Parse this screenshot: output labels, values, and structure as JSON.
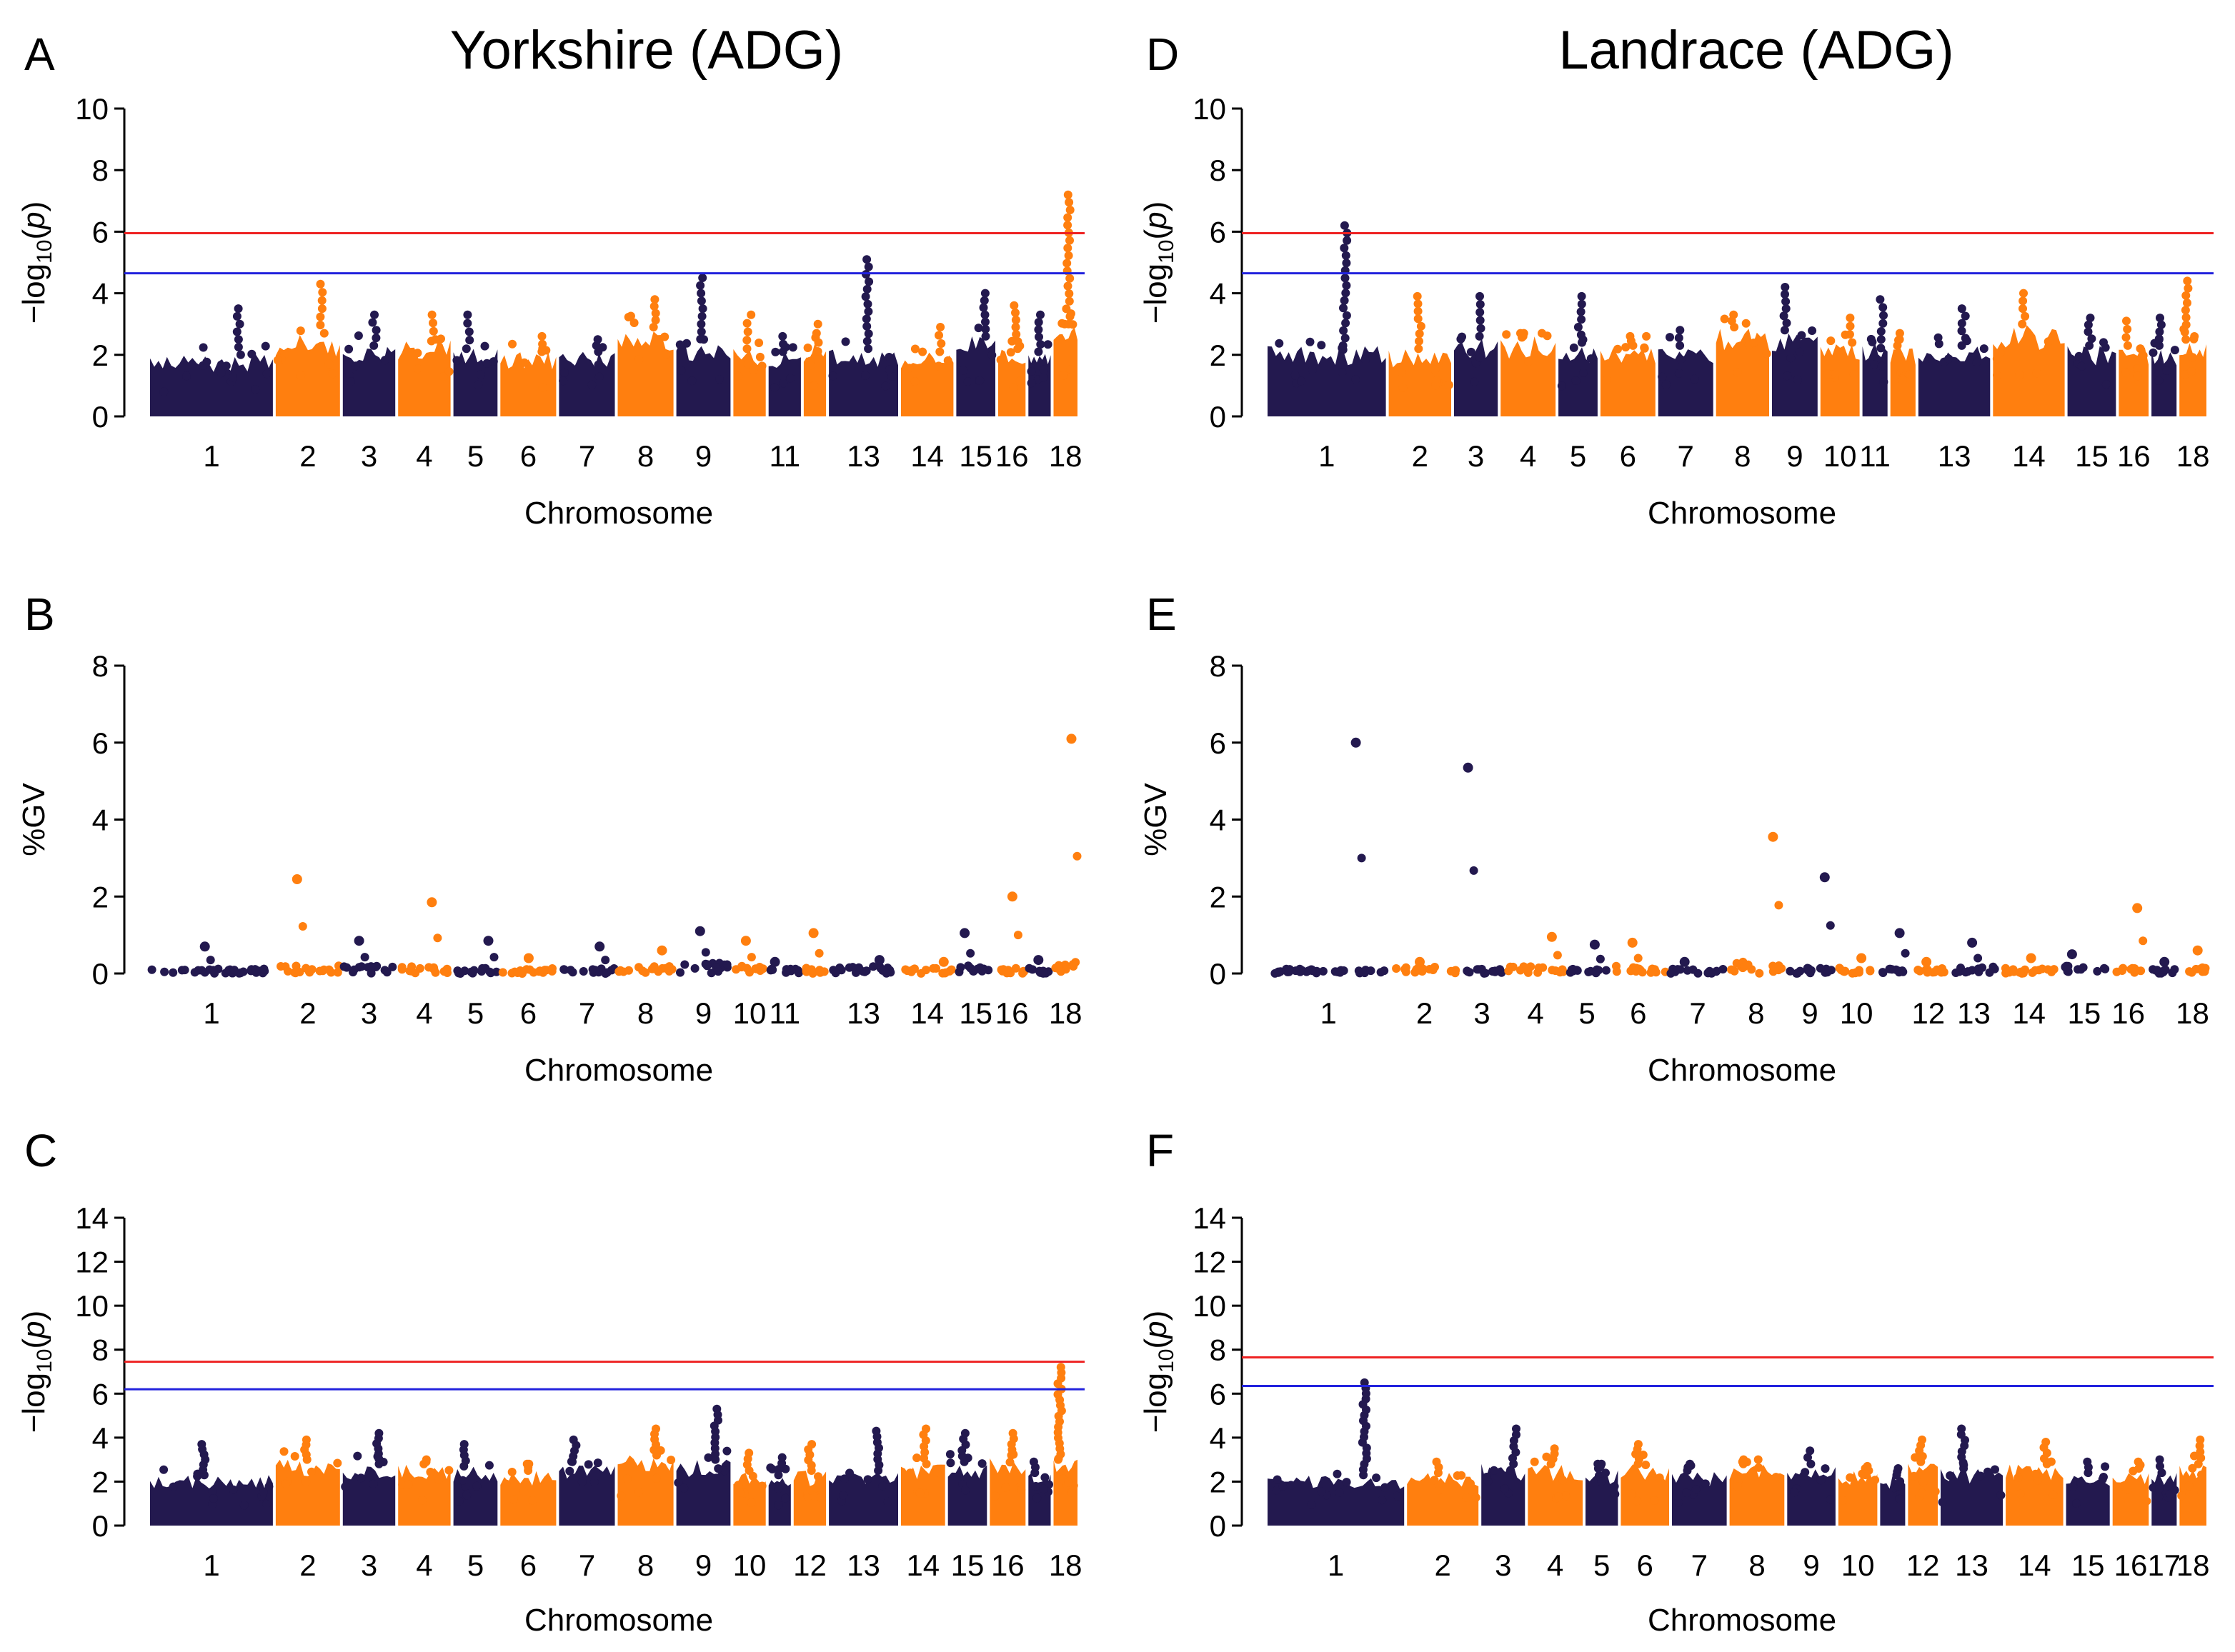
{
  "colors": {
    "dark": "#23194f",
    "orange": "#ff7f0f",
    "red": "#ee2222",
    "blue": "#2222dd",
    "axis": "#000000"
  },
  "columns": [
    {
      "title": "Yorkshire (ADG)"
    },
    {
      "title": "Landrace (ADG)"
    }
  ],
  "chart_data": [
    {
      "id": "A",
      "type": "scatter",
      "subtype": "manhattan",
      "breed": "Yorkshire",
      "trait": "ADG",
      "ylabel": {
        "prefix": "−log",
        "sub": "10",
        "suffix": "(",
        "ital": "p",
        "close": ")"
      },
      "xlabel": "Chromosome",
      "ylim": [
        0,
        10
      ],
      "yticks": [
        0,
        2,
        4,
        6,
        8,
        10
      ],
      "thresholds": [
        {
          "color": "red",
          "value": 5.95
        },
        {
          "color": "blue",
          "value": 4.65
        }
      ],
      "chromosomes": [
        {
          "label": "1",
          "len": 0.15,
          "base": 2.0,
          "peak": 3.5
        },
        {
          "label": "2",
          "len": 0.08,
          "base": 2.7,
          "peak": 4.3
        },
        {
          "label": "3",
          "len": 0.066,
          "base": 2.3,
          "peak": 3.3
        },
        {
          "label": "4",
          "len": 0.066,
          "base": 2.5,
          "peak": 3.3
        },
        {
          "label": "5",
          "len": 0.056,
          "base": 2.2,
          "peak": 3.3
        },
        {
          "label": "6",
          "len": 0.07,
          "base": 2.1,
          "peak": 2.6
        },
        {
          "label": "7",
          "len": 0.07,
          "base": 2.1,
          "peak": 2.5
        },
        {
          "label": "8",
          "len": 0.07,
          "base": 2.9,
          "peak": 3.8
        },
        {
          "label": "9",
          "len": 0.068,
          "base": 2.5,
          "peak": 4.5
        },
        {
          "label": "",
          "len": 0.042,
          "base": 2.2,
          "peak": 3.3
        },
        {
          "label": "11",
          "len": 0.042,
          "base": 2.1,
          "peak": 2.6
        },
        {
          "label": "",
          "len": 0.03,
          "base": 2.4,
          "peak": 3.0
        },
        {
          "label": "13",
          "len": 0.086,
          "base": 2.2,
          "peak": 5.1
        },
        {
          "label": "14",
          "len": 0.066,
          "base": 2.1,
          "peak": 2.9
        },
        {
          "label": "15",
          "len": 0.05,
          "base": 2.6,
          "peak": 4.0
        },
        {
          "label": "16",
          "len": 0.036,
          "base": 2.2,
          "peak": 3.6
        },
        {
          "label": "",
          "len": 0.03,
          "base": 2.1,
          "peak": 3.3
        },
        {
          "label": "18",
          "len": 0.032,
          "base": 3.0,
          "peak": 7.2
        }
      ]
    },
    {
      "id": "B",
      "type": "scatter",
      "subtype": "manhattan",
      "breed": "Yorkshire",
      "trait": "ADG",
      "ylabel": {
        "prefix": "%GV"
      },
      "xlabel": "Chromosome",
      "ylim": [
        0,
        8
      ],
      "yticks": [
        0,
        2,
        4,
        6,
        8
      ],
      "thresholds": [],
      "chromosomes": [
        {
          "label": "1",
          "len": 0.15,
          "base": 0.12,
          "peak": 0.7
        },
        {
          "label": "2",
          "len": 0.08,
          "base": 0.2,
          "peak": 2.45
        },
        {
          "label": "3",
          "len": 0.066,
          "base": 0.2,
          "peak": 0.85
        },
        {
          "label": "4",
          "len": 0.066,
          "base": 0.2,
          "peak": 1.85
        },
        {
          "label": "5",
          "len": 0.056,
          "base": 0.15,
          "peak": 0.85
        },
        {
          "label": "6",
          "len": 0.07,
          "base": 0.15,
          "peak": 0.4
        },
        {
          "label": "7",
          "len": 0.07,
          "base": 0.15,
          "peak": 0.7
        },
        {
          "label": "8",
          "len": 0.07,
          "base": 0.2,
          "peak": 0.6
        },
        {
          "label": "9",
          "len": 0.068,
          "base": 0.3,
          "peak": 1.1
        },
        {
          "label": "10",
          "len": 0.042,
          "base": 0.2,
          "peak": 0.85
        },
        {
          "label": "11",
          "len": 0.042,
          "base": 0.12,
          "peak": 0.3
        },
        {
          "label": "",
          "len": 0.03,
          "base": 0.15,
          "peak": 1.05
        },
        {
          "label": "13",
          "len": 0.086,
          "base": 0.2,
          "peak": 0.35
        },
        {
          "label": "14",
          "len": 0.066,
          "base": 0.15,
          "peak": 0.3
        },
        {
          "label": "15",
          "len": 0.05,
          "base": 0.2,
          "peak": 1.05
        },
        {
          "label": "16",
          "len": 0.036,
          "base": 0.15,
          "peak": 2.0
        },
        {
          "label": "",
          "len": 0.03,
          "base": 0.15,
          "peak": 0.35
        },
        {
          "label": "18",
          "len": 0.032,
          "base": 0.3,
          "peak": 6.1
        }
      ]
    },
    {
      "id": "C",
      "type": "scatter",
      "subtype": "manhattan",
      "breed": "Yorkshire",
      "trait": "ADG",
      "ylabel": {
        "prefix": "−log",
        "sub": "10",
        "suffix": "(",
        "ital": "p",
        "close": ")"
      },
      "xlabel": "Chromosome",
      "ylim": [
        0,
        14
      ],
      "yticks": [
        0,
        2,
        4,
        6,
        8,
        10,
        12,
        14
      ],
      "thresholds": [
        {
          "color": "red",
          "value": 7.45
        },
        {
          "color": "blue",
          "value": 6.2
        }
      ],
      "chromosomes": [
        {
          "label": "1",
          "len": 0.15,
          "base": 2.3,
          "peak": 3.7
        },
        {
          "label": "2",
          "len": 0.08,
          "base": 3.0,
          "peak": 3.9
        },
        {
          "label": "3",
          "len": 0.066,
          "base": 2.8,
          "peak": 4.2
        },
        {
          "label": "4",
          "len": 0.066,
          "base": 2.8,
          "peak": 3.0
        },
        {
          "label": "5",
          "len": 0.056,
          "base": 2.7,
          "peak": 3.7
        },
        {
          "label": "6",
          "len": 0.07,
          "base": 2.5,
          "peak": 2.8
        },
        {
          "label": "7",
          "len": 0.07,
          "base": 2.9,
          "peak": 3.9
        },
        {
          "label": "8",
          "len": 0.07,
          "base": 3.2,
          "peak": 4.4
        },
        {
          "label": "9",
          "len": 0.068,
          "base": 3.0,
          "peak": 5.3
        },
        {
          "label": "10",
          "len": 0.042,
          "base": 2.5,
          "peak": 3.3
        },
        {
          "label": "",
          "len": 0.03,
          "base": 2.3,
          "peak": 3.1
        },
        {
          "label": "12",
          "len": 0.042,
          "base": 2.5,
          "peak": 3.7
        },
        {
          "label": "13",
          "len": 0.086,
          "base": 2.5,
          "peak": 4.3
        },
        {
          "label": "14",
          "len": 0.056,
          "base": 2.8,
          "peak": 4.4
        },
        {
          "label": "15",
          "len": 0.05,
          "base": 2.9,
          "peak": 4.2
        },
        {
          "label": "16",
          "len": 0.046,
          "base": 3.2,
          "peak": 4.2
        },
        {
          "label": "",
          "len": 0.03,
          "base": 2.4,
          "peak": 2.9
        },
        {
          "label": "18",
          "len": 0.032,
          "base": 3.0,
          "peak": 7.2
        }
      ]
    },
    {
      "id": "D",
      "type": "scatter",
      "subtype": "manhattan",
      "breed": "Landrace",
      "trait": "ADG",
      "ylabel": {
        "prefix": "−log",
        "sub": "10",
        "suffix": "(",
        "ital": "p",
        "close": ")"
      },
      "xlabel": "Chromosome",
      "ylim": [
        0,
        10
      ],
      "yticks": [
        0,
        2,
        4,
        6,
        8,
        10
      ],
      "thresholds": [
        {
          "color": "red",
          "value": 5.95
        },
        {
          "color": "blue",
          "value": 4.65
        }
      ],
      "chromosomes": [
        {
          "label": "1",
          "len": 0.13,
          "base": 2.3,
          "peak": 6.2
        },
        {
          "label": "2",
          "len": 0.07,
          "base": 2.2,
          "peak": 3.9
        },
        {
          "label": "3",
          "len": 0.05,
          "base": 2.6,
          "peak": 3.9
        },
        {
          "label": "4",
          "len": 0.062,
          "base": 2.6,
          "peak": 2.7
        },
        {
          "label": "5",
          "len": 0.045,
          "base": 2.4,
          "peak": 3.9
        },
        {
          "label": "6",
          "len": 0.062,
          "base": 2.3,
          "peak": 2.6
        },
        {
          "label": "7",
          "len": 0.062,
          "base": 2.3,
          "peak": 2.8
        },
        {
          "label": "8",
          "len": 0.06,
          "base": 2.9,
          "peak": 3.3
        },
        {
          "label": "9",
          "len": 0.052,
          "base": 2.8,
          "peak": 4.2
        },
        {
          "label": "10",
          "len": 0.045,
          "base": 2.4,
          "peak": 3.2
        },
        {
          "label": "11",
          "len": 0.03,
          "base": 2.5,
          "peak": 3.8
        },
        {
          "label": "",
          "len": 0.03,
          "base": 2.3,
          "peak": 2.7
        },
        {
          "label": "13",
          "len": 0.08,
          "base": 2.3,
          "peak": 3.5
        },
        {
          "label": "14",
          "len": 0.08,
          "base": 3.0,
          "peak": 4.0
        },
        {
          "label": "15",
          "len": 0.055,
          "base": 2.3,
          "peak": 3.2
        },
        {
          "label": "16",
          "len": 0.035,
          "base": 2.3,
          "peak": 3.1
        },
        {
          "label": "",
          "len": 0.03,
          "base": 2.3,
          "peak": 3.2
        },
        {
          "label": "18",
          "len": 0.032,
          "base": 2.5,
          "peak": 4.4
        }
      ]
    },
    {
      "id": "E",
      "type": "scatter",
      "subtype": "manhattan",
      "breed": "Landrace",
      "trait": "ADG",
      "ylabel": {
        "prefix": "%GV"
      },
      "xlabel": "Chromosome",
      "ylim": [
        0,
        8
      ],
      "yticks": [
        0,
        2,
        4,
        6,
        8
      ],
      "thresholds": [],
      "chromosomes": [
        {
          "label": "1",
          "len": 0.13,
          "base": 0.12,
          "peak": 6.0
        },
        {
          "label": "2",
          "len": 0.07,
          "base": 0.18,
          "peak": 0.3
        },
        {
          "label": "3",
          "len": 0.05,
          "base": 0.15,
          "peak": 5.35
        },
        {
          "label": "4",
          "len": 0.062,
          "base": 0.2,
          "peak": 0.95
        },
        {
          "label": "5",
          "len": 0.045,
          "base": 0.12,
          "peak": 0.75
        },
        {
          "label": "6",
          "len": 0.062,
          "base": 0.2,
          "peak": 0.8
        },
        {
          "label": "7",
          "len": 0.062,
          "base": 0.12,
          "peak": 0.3
        },
        {
          "label": "8",
          "len": 0.06,
          "base": 0.3,
          "peak": 3.55
        },
        {
          "label": "9",
          "len": 0.052,
          "base": 0.15,
          "peak": 2.5
        },
        {
          "label": "10",
          "len": 0.045,
          "base": 0.15,
          "peak": 0.4
        },
        {
          "label": "",
          "len": 0.03,
          "base": 0.12,
          "peak": 1.05
        },
        {
          "label": "12",
          "len": 0.045,
          "base": 0.15,
          "peak": 0.3
        },
        {
          "label": "13",
          "len": 0.05,
          "base": 0.2,
          "peak": 0.8
        },
        {
          "label": "14",
          "len": 0.065,
          "base": 0.15,
          "peak": 0.4
        },
        {
          "label": "15",
          "len": 0.05,
          "base": 0.2,
          "peak": 0.5
        },
        {
          "label": "16",
          "len": 0.042,
          "base": 0.15,
          "peak": 1.7
        },
        {
          "label": "",
          "len": 0.03,
          "base": 0.12,
          "peak": 0.3
        },
        {
          "label": "18",
          "len": 0.032,
          "base": 0.2,
          "peak": 0.6
        }
      ]
    },
    {
      "id": "F",
      "type": "scatter",
      "subtype": "manhattan",
      "breed": "Landrace",
      "trait": "ADG",
      "ylabel": {
        "prefix": "−log",
        "sub": "10",
        "suffix": "(",
        "ital": "p",
        "close": ")"
      },
      "xlabel": "Chromosome",
      "ylim": [
        0,
        14
      ],
      "yticks": [
        0,
        2,
        4,
        6,
        8,
        10,
        12,
        14
      ],
      "thresholds": [
        {
          "color": "red",
          "value": 7.65
        },
        {
          "color": "blue",
          "value": 6.35
        }
      ],
      "chromosomes": [
        {
          "label": "1",
          "len": 0.15,
          "base": 2.3,
          "peak": 6.5
        },
        {
          "label": "2",
          "len": 0.08,
          "base": 2.4,
          "peak": 2.9
        },
        {
          "label": "3",
          "len": 0.05,
          "base": 2.8,
          "peak": 4.4
        },
        {
          "label": "4",
          "len": 0.062,
          "base": 2.8,
          "peak": 3.5
        },
        {
          "label": "5",
          "len": 0.038,
          "base": 2.6,
          "peak": 2.8
        },
        {
          "label": "6",
          "len": 0.055,
          "base": 2.8,
          "peak": 3.7
        },
        {
          "label": "7",
          "len": 0.062,
          "base": 2.5,
          "peak": 2.8
        },
        {
          "label": "8",
          "len": 0.062,
          "base": 2.8,
          "peak": 3.0
        },
        {
          "label": "9",
          "len": 0.055,
          "base": 2.8,
          "peak": 3.4
        },
        {
          "label": "10",
          "len": 0.045,
          "base": 2.5,
          "peak": 2.7
        },
        {
          "label": "",
          "len": 0.03,
          "base": 2.3,
          "peak": 2.6
        },
        {
          "label": "12",
          "len": 0.035,
          "base": 2.9,
          "peak": 3.9
        },
        {
          "label": "13",
          "len": 0.07,
          "base": 2.6,
          "peak": 4.4
        },
        {
          "label": "14",
          "len": 0.065,
          "base": 2.8,
          "peak": 3.8
        },
        {
          "label": "15",
          "len": 0.05,
          "base": 2.4,
          "peak": 2.9
        },
        {
          "label": "16",
          "len": 0.042,
          "base": 2.6,
          "peak": 2.9
        },
        {
          "label": "17",
          "len": 0.03,
          "base": 2.4,
          "peak": 3.0
        },
        {
          "label": "18",
          "len": 0.032,
          "base": 2.8,
          "peak": 3.9
        }
      ]
    }
  ]
}
